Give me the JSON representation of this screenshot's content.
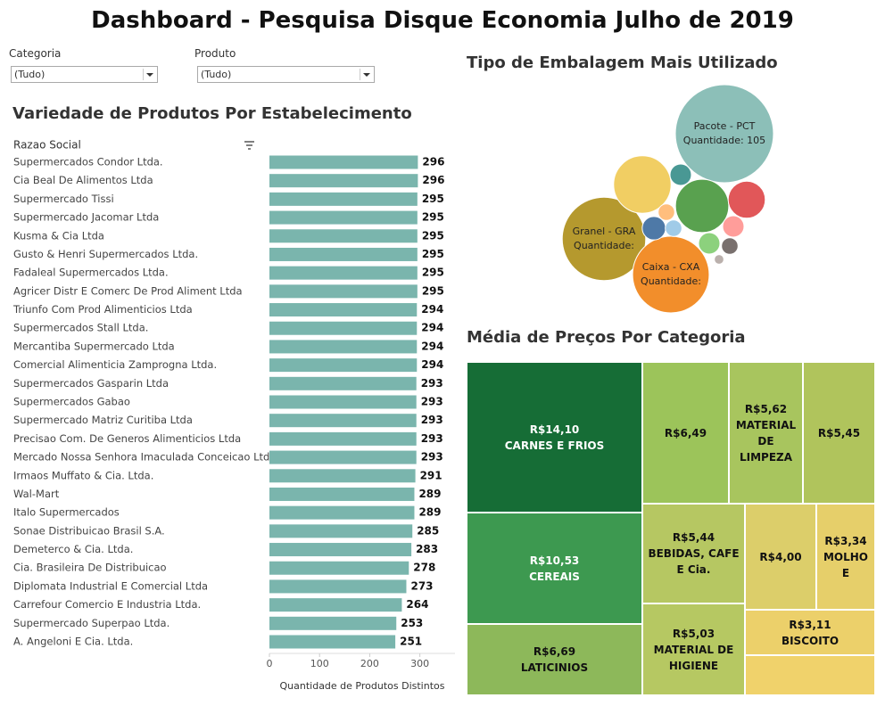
{
  "title": "Dashboard - Pesquisa Disque Economia Julho de 2019",
  "filters": [
    {
      "label": "Categoria",
      "value": "(Tudo)"
    },
    {
      "label": "Produto",
      "value": "(Tudo)"
    }
  ],
  "chart_data": [
    {
      "type": "bar",
      "orientation": "horizontal",
      "title": "Variedade de Produtos Por Estabelecimento",
      "column_header": "Razao Social",
      "x_label": "Quantidade de Produtos Distintos",
      "color": "#7ab5ad",
      "categories": [
        "Supermercados Condor Ltda.",
        "Cia Beal De Alimentos Ltda",
        "Supermercado Tissi",
        "Supermercado Jacomar Ltda",
        "Kusma & Cia Ltda",
        "Gusto & Henri Supermercados Ltda.",
        "Fadaleal Supermercados Ltda.",
        "Agricer Distr E Comerc De Prod Aliment Ltda",
        "Triunfo Com Prod Alimenticios Ltda",
        "Supermercados Stall Ltda.",
        "Mercantiba Supermercado Ltda",
        "Comercial Alimenticia Zamprogna Ltda.",
        "Supermercados Gasparin Ltda",
        "Supermercados Gabao",
        "Supermercado Matriz Curitiba Ltda",
        "Precisao Com. De Generos Alimenticios Ltda",
        "Mercado Nossa Senhora Imaculada Conceicao Ltda",
        "Irmaos Muffato & Cia. Ltda.",
        "Wal-Mart",
        "Italo Supermercados",
        "Sonae Distribuicao Brasil S.A.",
        "Demeterco & Cia. Ltda.",
        "Cia. Brasileira De Distribuicao",
        "Diplomata Industrial E Comercial Ltda",
        "Carrefour Comercio E Industria Ltda.",
        "Supermercado Superpao Ltda.",
        "A. Angeloni E Cia. Ltda."
      ],
      "values": [
        296,
        296,
        295,
        295,
        295,
        295,
        295,
        295,
        294,
        294,
        294,
        294,
        293,
        293,
        293,
        293,
        293,
        291,
        289,
        289,
        285,
        283,
        278,
        273,
        264,
        253,
        251
      ],
      "xlim": [
        0,
        370
      ],
      "xticks": [
        0,
        100,
        200,
        300
      ]
    },
    {
      "type": "bubble",
      "title": "Tipo de Embalagem Mais Utilizado",
      "categories": [
        "Pacote - PCT",
        "Granel - GRA",
        "Caixa - CXA",
        null,
        null,
        null,
        null,
        null,
        null,
        null,
        null,
        null,
        null,
        null
      ],
      "values": [
        105,
        76,
        64,
        36,
        31,
        15,
        5,
        6,
        5,
        5,
        3,
        3,
        3,
        1
      ],
      "value_labels": [
        "Quantidade: 105",
        "Quantidade:",
        "Quantidade:",
        null,
        null,
        null,
        null,
        null,
        null,
        null,
        null,
        null,
        null,
        null
      ],
      "colors": [
        "#8cbfb8",
        "#b5992e",
        "#f28e2b",
        "#f1ce63",
        "#59a14f",
        "#e15759",
        "#499894",
        "#4e79a7",
        "#ff9d9a",
        "#8cd17d",
        "#79706e",
        "#ffbe7d",
        "#a0cbe8",
        "#bab0ac"
      ]
    },
    {
      "type": "treemap",
      "title": "Média de Preços Por Categoria",
      "categories": [
        "CARNES E FRIOS",
        "CEREAIS",
        "LATICINIOS",
        null,
        "MATERIAL DE LIMPEZA",
        null,
        "BEBIDAS, CAFE E Cia.",
        "MATERIAL DE HIGIENE",
        null,
        "MOLHO E",
        "BISCOITO",
        null
      ],
      "values": [
        14.1,
        10.53,
        6.69,
        6.49,
        5.62,
        5.45,
        5.44,
        5.03,
        4.0,
        3.34,
        3.11,
        2.8
      ],
      "value_labels": [
        "R$14,10",
        "R$10,53",
        "R$6,69",
        "R$6,49",
        "R$5,62",
        "R$5,45",
        "R$5,44",
        "R$5,03",
        "R$4,00",
        "R$3,34",
        "R$3,11",
        null
      ],
      "colors": [
        "#166d36",
        "#3d9950",
        "#8db85a",
        "#9cc45a",
        "#a8c55e",
        "#b0c45c",
        "#b6c762",
        "#b6c862",
        "#dcce6a",
        "#e6cf6a",
        "#ecd06a",
        "#f0d26b"
      ]
    }
  ]
}
